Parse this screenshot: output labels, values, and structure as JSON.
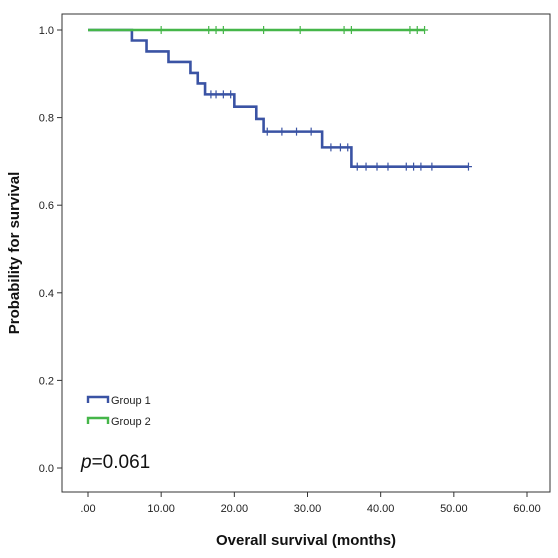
{
  "chart_data": {
    "type": "line",
    "subtype": "kaplan-meier step",
    "xlabel": "Overall survival (months)",
    "ylabel": "Probability for survival",
    "xlim": [
      0,
      60
    ],
    "ylim": [
      0,
      1.0
    ],
    "x_ticks": [
      ".00",
      "10.00",
      "20.00",
      "30.00",
      "40.00",
      "50.00",
      "60.00"
    ],
    "x_tick_values": [
      0,
      10,
      20,
      30,
      40,
      50,
      60
    ],
    "y_ticks": [
      "0.0",
      "0.2",
      "0.4",
      "0.6",
      "0.8",
      "1.0"
    ],
    "y_tick_values": [
      0,
      0.2,
      0.4,
      0.6,
      0.8,
      1.0
    ],
    "grid": false,
    "legend_position": "bottom-left",
    "annotation": {
      "prefix": "p",
      "value": "=0.061"
    },
    "series": [
      {
        "name": "Group 1",
        "color": "#3a53a4",
        "steps": [
          [
            0,
            1.0
          ],
          [
            6,
            0.976
          ],
          [
            8,
            0.951
          ],
          [
            11,
            0.927
          ],
          [
            14,
            0.902
          ],
          [
            15,
            0.878
          ],
          [
            16,
            0.853
          ],
          [
            20,
            0.825
          ],
          [
            23,
            0.797
          ],
          [
            24,
            0.768
          ],
          [
            32,
            0.732
          ],
          [
            36,
            0.688
          ],
          [
            52,
            0.688
          ]
        ],
        "censored": [
          [
            16.8,
            0.853
          ],
          [
            17.5,
            0.853
          ],
          [
            18.5,
            0.853
          ],
          [
            19.5,
            0.853
          ],
          [
            24.5,
            0.768
          ],
          [
            26.5,
            0.768
          ],
          [
            28.5,
            0.768
          ],
          [
            30.5,
            0.768
          ],
          [
            33.2,
            0.732
          ],
          [
            34.5,
            0.732
          ],
          [
            35.5,
            0.732
          ],
          [
            36.8,
            0.688
          ],
          [
            38,
            0.688
          ],
          [
            39.5,
            0.688
          ],
          [
            41,
            0.688
          ],
          [
            43.5,
            0.688
          ],
          [
            44.5,
            0.688
          ],
          [
            45.5,
            0.688
          ],
          [
            47,
            0.688
          ],
          [
            52,
            0.688
          ]
        ]
      },
      {
        "name": "Group 2",
        "color": "#45b649",
        "steps": [
          [
            0,
            1.0
          ],
          [
            46,
            1.0
          ]
        ],
        "censored": [
          [
            10,
            1.0
          ],
          [
            16.5,
            1.0
          ],
          [
            17.5,
            1.0
          ],
          [
            18.5,
            1.0
          ],
          [
            24,
            1.0
          ],
          [
            29,
            1.0
          ],
          [
            35,
            1.0
          ],
          [
            36,
            1.0
          ],
          [
            44,
            1.0
          ],
          [
            45,
            1.0
          ],
          [
            46,
            1.0
          ]
        ]
      }
    ]
  }
}
